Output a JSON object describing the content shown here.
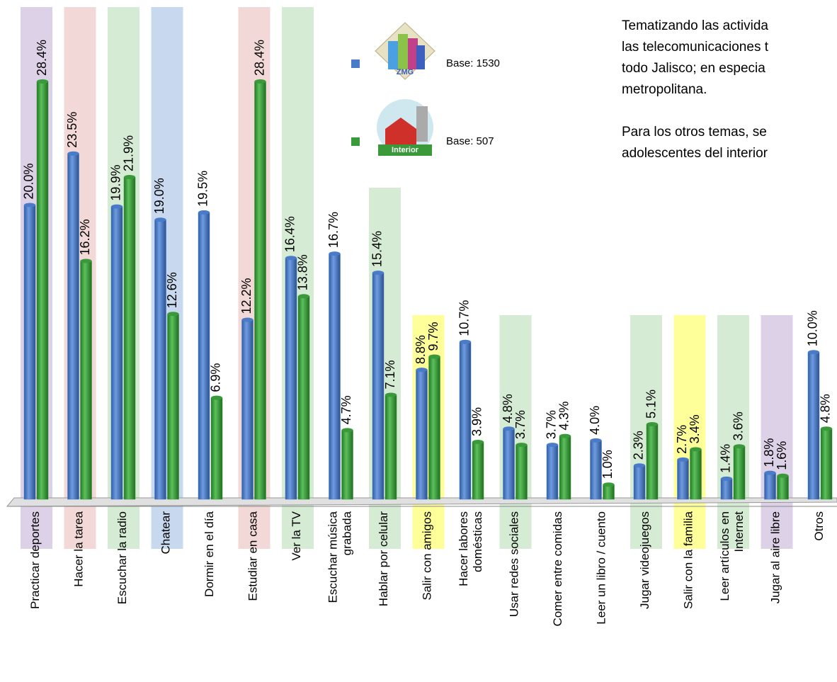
{
  "chart_data": {
    "type": "bar",
    "categories": [
      "Practicar deportes",
      "Hacer la tarea",
      "Escuchar la radio",
      "Chatear",
      "Dormir en el día",
      "Estudiar en casa",
      "Ver la TV",
      "Escuchar música\ngrabada",
      "Hablar por celular",
      "Salir con amigos",
      "Hacer labores\ndomésticas",
      "Usar redes sociales",
      "Comer entre comidas",
      "Leer un libro / cuento",
      "Jugar videojuegos",
      "Salir con la familia",
      "Leer artículos en\nInternet",
      "Jugar al aire libre",
      "Otros"
    ],
    "category_colors": [
      "#ddd1e7",
      "#f2d8d6",
      "#d5ebd4",
      "#c7d8ef",
      null,
      "#f2d8d6",
      "#d5ebd4",
      null,
      "#d5ebd4",
      "#ffff99",
      null,
      "#d5ebd4",
      null,
      null,
      "#d5ebd4",
      "#ffff99",
      "#d5ebd4",
      "#ddd1e7",
      null
    ],
    "series": [
      {
        "name": "Base: 1530",
        "color": "#4a7bc8",
        "values": [
          20.0,
          23.5,
          19.9,
          19.0,
          19.5,
          12.2,
          16.4,
          16.7,
          15.4,
          8.8,
          10.7,
          4.8,
          3.7,
          4.0,
          2.3,
          2.7,
          1.4,
          1.8,
          10.0
        ],
        "value_labels": [
          "20.0%",
          "23.5%",
          "19.9%",
          "19.0%",
          "19.5%",
          "12.2%",
          "16.4%",
          "16.7%",
          "15.4%",
          "8.8%",
          "10.7%",
          "4.8%",
          "3.7%",
          "4.0%",
          "2.3%",
          "2.7%",
          "1.4%",
          "1.8%",
          "10.0%"
        ]
      },
      {
        "name": "Base: 507",
        "color": "#3a9a3a",
        "values": [
          28.4,
          16.2,
          21.9,
          12.6,
          6.9,
          28.4,
          13.8,
          4.7,
          7.1,
          9.7,
          3.9,
          3.7,
          4.3,
          1.0,
          5.1,
          3.4,
          3.6,
          1.6,
          4.8
        ],
        "value_labels": [
          "28.4%",
          "16.2%",
          "21.9%",
          "12.6%",
          "6.9%",
          "28.4%",
          "13.8%",
          "4.7%",
          "7.1%",
          "9.7%",
          "3.9%",
          "3.7%",
          "4.3%",
          "1.0%",
          "5.1%",
          "3.4%",
          "3.6%",
          "1.6%",
          "4.8%"
        ]
      }
    ],
    "legend_icons": [
      "ZMG",
      "Interior"
    ],
    "ylim": [
      0,
      30
    ]
  },
  "side_text": {
    "paragraphs": [
      [
        "Tematizando las activida",
        "las telecomunicaciones t",
        "todo Jalisco; en especia",
        "metropolitana."
      ],
      [
        "Para los otros temas, se",
        "adolescentes del interior"
      ]
    ]
  }
}
